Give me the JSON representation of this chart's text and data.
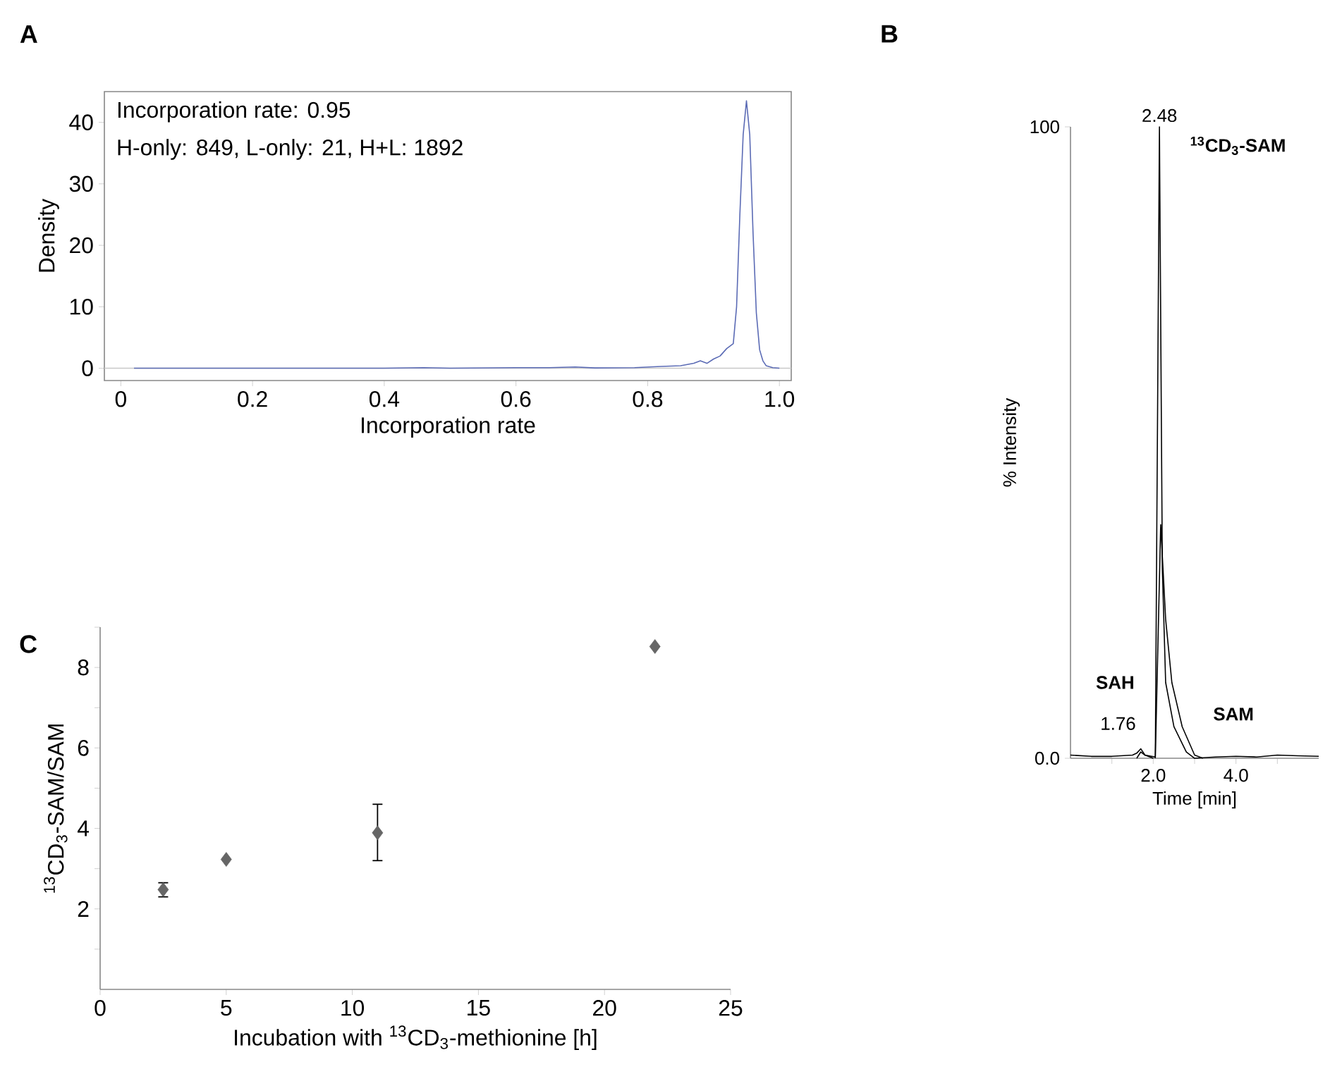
{
  "chart_data": [
    {
      "type": "line",
      "title": "A",
      "xlabel": "Incorporation rate",
      "ylabel": "Density",
      "annotations": [
        "Incorporation rate: 0.95",
        "H-only: 849, L-only: 21, H+L: 1892"
      ],
      "xlim": [
        -0.025,
        1.018
      ],
      "ylim": [
        -2,
        45
      ],
      "xticks": [
        0,
        0.2,
        0.4,
        0.6,
        0.8,
        {
          "value": 1,
          "label": "1.0"
        }
      ],
      "yticks": [
        0,
        10,
        20,
        30,
        40
      ],
      "ref_lines": [
        {
          "axis": "y",
          "value": 0,
          "color": "#c8c8c8"
        }
      ],
      "series": [
        {
          "color": "#5b6bb5",
          "x": [
            0.02,
            0.1,
            0.2,
            0.3,
            0.4,
            0.46,
            0.5,
            0.6,
            0.65,
            0.69,
            0.72,
            0.78,
            0.82,
            0.85,
            0.87,
            0.88,
            0.89,
            0.9,
            0.91,
            0.92,
            0.93,
            0.935,
            0.94,
            0.945,
            0.95,
            0.955,
            0.96,
            0.965,
            0.97,
            0.975,
            0.98,
            0.99,
            1.0
          ],
          "values": [
            0,
            0,
            0,
            0,
            0,
            0.1,
            0,
            0.1,
            0.1,
            0.2,
            0.05,
            0.1,
            0.3,
            0.4,
            0.8,
            1.2,
            0.8,
            1.5,
            2.0,
            3.2,
            4.0,
            10,
            25,
            38,
            43.5,
            38,
            22,
            9,
            3,
            1.2,
            0.4,
            0.1,
            0
          ]
        }
      ]
    },
    {
      "type": "line",
      "title": "B",
      "xlabel": "Time [min]",
      "ylabel": "% Intensity",
      "annotations": [
        "2.48",
        "$^{13}$CD$_{3}$-SAM",
        "SAH",
        "1.76",
        "SAM"
      ],
      "xlim": [
        0,
        6
      ],
      "ylim": [
        0,
        100
      ],
      "xticks": [
        {
          "value": 1,
          "label": null
        },
        {
          "value": 2,
          "label": "2.0"
        },
        {
          "value": 3,
          "label": null
        },
        {
          "value": 4,
          "label": "4.0"
        },
        {
          "value": 5,
          "label": null
        }
      ],
      "yticks": [
        {
          "value": 0,
          "label": "0.0"
        },
        100
      ],
      "series": [
        {
          "color": "#000000",
          "x": [
            0,
            0.5,
            1,
            1.5,
            1.6,
            1.7,
            1.8,
            2.05,
            2.15,
            2.22,
            2.3,
            2.5,
            2.8,
            3.0,
            3.5,
            4,
            4.5,
            5,
            5.5,
            6
          ],
          "values": [
            0.5,
            0.3,
            0.3,
            0.5,
            0.8,
            1.5,
            0.5,
            0.2,
            100,
            30,
            12,
            5,
            1,
            0,
            0.2,
            0.3,
            0.2,
            0.5,
            0.4,
            0.3
          ]
        },
        {
          "color": "#000000",
          "x": [
            2.05,
            2.18,
            2.3,
            2.45,
            2.7,
            3.0,
            3.2
          ],
          "values": [
            0,
            37,
            22,
            12,
            5,
            0.5,
            0
          ]
        },
        {
          "color": "#000000",
          "x": [
            1.6,
            1.7,
            1.8,
            2.0
          ],
          "values": [
            0,
            1,
            0.5,
            0
          ]
        }
      ]
    },
    {
      "type": "scatter",
      "title": "C",
      "xlabel": "Incubation with $^{13}$CD$_{3}$-methionine [h]",
      "ylabel": "$^{13}$CD$_{3}$-SAM/SAM",
      "marker": "diamond",
      "xlim": [
        0,
        25
      ],
      "ylim": [
        0,
        9
      ],
      "xticks": [
        0,
        5,
        10,
        15,
        20,
        25
      ],
      "yticks": [
        {
          "value": 1,
          "label": null
        },
        2,
        {
          "value": 3,
          "label": null
        },
        4,
        {
          "value": 5,
          "label": null
        },
        6,
        {
          "value": 7,
          "label": null
        },
        8,
        {
          "value": 9,
          "label": null
        }
      ],
      "x": [
        2.5,
        5,
        11,
        22
      ],
      "values": [
        2.48,
        3.23,
        3.89,
        8.52
      ],
      "color": "#666666",
      "errors": [
        [
          2.3,
          2.65
        ],
        null,
        [
          3.2,
          4.6
        ],
        null
      ]
    }
  ]
}
